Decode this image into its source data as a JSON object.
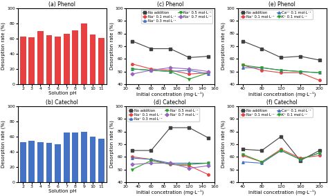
{
  "chart_data": [
    {
      "type": "bar",
      "title": "(a) Phenol",
      "xlabel": "Solution pH",
      "ylabel": "Desorption rate (%)",
      "categories": [
        "2",
        "3",
        "4",
        "5",
        "6",
        "7",
        "8",
        "9",
        "10",
        "11"
      ],
      "values": [
        63,
        62,
        70,
        64,
        63,
        66,
        71,
        80,
        65,
        61
      ],
      "color": "#e84040",
      "ylim": [
        0,
        100
      ],
      "yticks": [
        0,
        20,
        40,
        60,
        80,
        100
      ],
      "grid": false
    },
    {
      "type": "bar",
      "title": "(b) Catechol",
      "xlabel": "Solution pH",
      "ylabel": "Desorption rate (%)",
      "categories": [
        "2",
        "3",
        "4",
        "5",
        "6",
        "7",
        "8",
        "9",
        "10",
        "11"
      ],
      "values": [
        53,
        54,
        53,
        52,
        50,
        65,
        65,
        66,
        60,
        57
      ],
      "color": "#4472c4",
      "ylim": [
        0,
        100
      ],
      "yticks": [
        0,
        20,
        40,
        60,
        80,
        100
      ],
      "grid": false
    },
    {
      "type": "line",
      "title": "(c) Phenol",
      "xlabel": "Initial concetration (mg·L⁻¹)",
      "ylabel": "Desorption rate (%)",
      "x": [
        30,
        60,
        90,
        120,
        150
      ],
      "series": [
        {
          "name": "No addition",
          "color": "#404040",
          "marker": "square",
          "values": [
            74,
            68,
            68,
            61,
            62
          ]
        },
        {
          "name": "Na⁺ 0.1 mol·L⁻¹",
          "color": "#e84040",
          "marker": "circle",
          "values": [
            56,
            52,
            51,
            48,
            49
          ]
        },
        {
          "name": "Na⁺ 0.3 mol·L⁻¹",
          "color": "#4472c4",
          "marker": "triangle_up",
          "values": [
            52,
            51,
            50,
            51,
            48
          ]
        },
        {
          "name": "Na⁺ 0.5 mol·L⁻¹",
          "color": "#2ca02c",
          "marker": "triangle_down",
          "values": [
            52,
            51,
            50,
            44,
            49
          ]
        },
        {
          "name": "Na⁺ 0.7 mol·L⁻¹",
          "color": "#9467bd",
          "marker": "diamond",
          "values": [
            48,
            51,
            53,
            52,
            50
          ]
        }
      ],
      "xlim": [
        20,
        160
      ],
      "xticks": [
        20,
        40,
        60,
        80,
        100,
        120,
        140,
        160
      ],
      "ylim": [
        40,
        100
      ],
      "yticks": [
        40,
        50,
        60,
        70,
        80,
        90,
        100
      ],
      "legend": "upper right",
      "grid": false
    },
    {
      "type": "line",
      "title": "(d) Catechol",
      "xlabel": "Initial concetration (mg·L⁻¹)",
      "ylabel": "Desorption rate (%)",
      "x": [
        30,
        60,
        90,
        120,
        150
      ],
      "series": [
        {
          "name": "No addition",
          "color": "#404040",
          "marker": "square",
          "values": [
            65,
            65,
            83,
            83,
            75
          ]
        },
        {
          "name": "Na⁺ 0.1 mol·L⁻¹",
          "color": "#e84040",
          "marker": "circle",
          "values": [
            60,
            58,
            54,
            53,
            46
          ]
        },
        {
          "name": "Na⁺ 0.3 mol·L⁻¹",
          "color": "#4472c4",
          "marker": "triangle_up",
          "values": [
            59,
            58,
            55,
            55,
            55
          ]
        },
        {
          "name": "Na⁺ 0.5 mol·L⁻¹",
          "color": "#2ca02c",
          "marker": "triangle_down",
          "values": [
            50,
            57,
            54,
            54,
            55
          ]
        },
        {
          "name": "Na⁺ 0.7 mol·L⁻¹",
          "color": "#9467bd",
          "marker": "diamond",
          "values": [
            54,
            55,
            55,
            51,
            53
          ]
        }
      ],
      "xlim": [
        20,
        160
      ],
      "xticks": [
        20,
        40,
        60,
        80,
        100,
        120,
        140,
        160
      ],
      "ylim": [
        40,
        100
      ],
      "yticks": [
        40,
        50,
        60,
        70,
        80,
        90,
        100
      ],
      "legend": "upper left",
      "grid": false
    },
    {
      "type": "line",
      "title": "(e) Phenol",
      "xlabel": "Initial concetration (mg·L⁻¹)",
      "ylabel": "Desorption rate (%)",
      "x": [
        40,
        80,
        120,
        160,
        200
      ],
      "series": [
        {
          "name": "No addition",
          "color": "#404040",
          "marker": "square",
          "values": [
            74,
            68,
            61,
            62,
            59
          ]
        },
        {
          "name": "Na⁺ 0.1 mol·L⁻¹",
          "color": "#e84040",
          "marker": "circle",
          "values": [
            55,
            51,
            49,
            49,
            43
          ]
        },
        {
          "name": "Ca²⁺ 0.1 mol·L⁻¹",
          "color": "#4472c4",
          "marker": "triangle_up",
          "values": [
            53,
            53,
            51,
            50,
            49
          ]
        },
        {
          "name": "K⁺ 0.1 mol·L⁻¹",
          "color": "#2ca02c",
          "marker": "triangle_down",
          "values": [
            55,
            53,
            51,
            50,
            49
          ]
        }
      ],
      "xlim": [
        30,
        215
      ],
      "xticks": [
        40,
        80,
        120,
        160,
        200
      ],
      "ylim": [
        40,
        100
      ],
      "yticks": [
        40,
        50,
        60,
        70,
        80,
        90,
        100
      ],
      "legend": "upper left",
      "grid": false
    },
    {
      "type": "line",
      "title": "(f) Catechol",
      "xlabel": "Initial concetration (mg·L⁻¹)",
      "ylabel": "Desorption rate (%)",
      "x": [
        40,
        80,
        120,
        160,
        200
      ],
      "series": [
        {
          "name": "No addition",
          "color": "#404040",
          "marker": "square",
          "values": [
            66,
            65,
            76,
            57,
            65
          ]
        },
        {
          "name": "Na⁺ 0.1 mol·L⁻¹",
          "color": "#e84040",
          "marker": "circle",
          "values": [
            61,
            56,
            66,
            59,
            61
          ]
        },
        {
          "name": "Ca²⁺ 0.1 mol·L⁻¹",
          "color": "#4472c4",
          "marker": "triangle_up",
          "values": [
            56,
            55,
            65,
            58,
            63
          ]
        },
        {
          "name": "K⁺ 0.1 mol·L⁻¹",
          "color": "#2ca02c",
          "marker": "triangle_down",
          "values": [
            62,
            56,
            65,
            58,
            63
          ]
        }
      ],
      "xlim": [
        30,
        215
      ],
      "xticks": [
        40,
        80,
        120,
        160,
        200
      ],
      "ylim": [
        40,
        100
      ],
      "yticks": [
        40,
        50,
        60,
        70,
        80,
        90,
        100
      ],
      "legend": "upper left",
      "grid": false
    }
  ]
}
